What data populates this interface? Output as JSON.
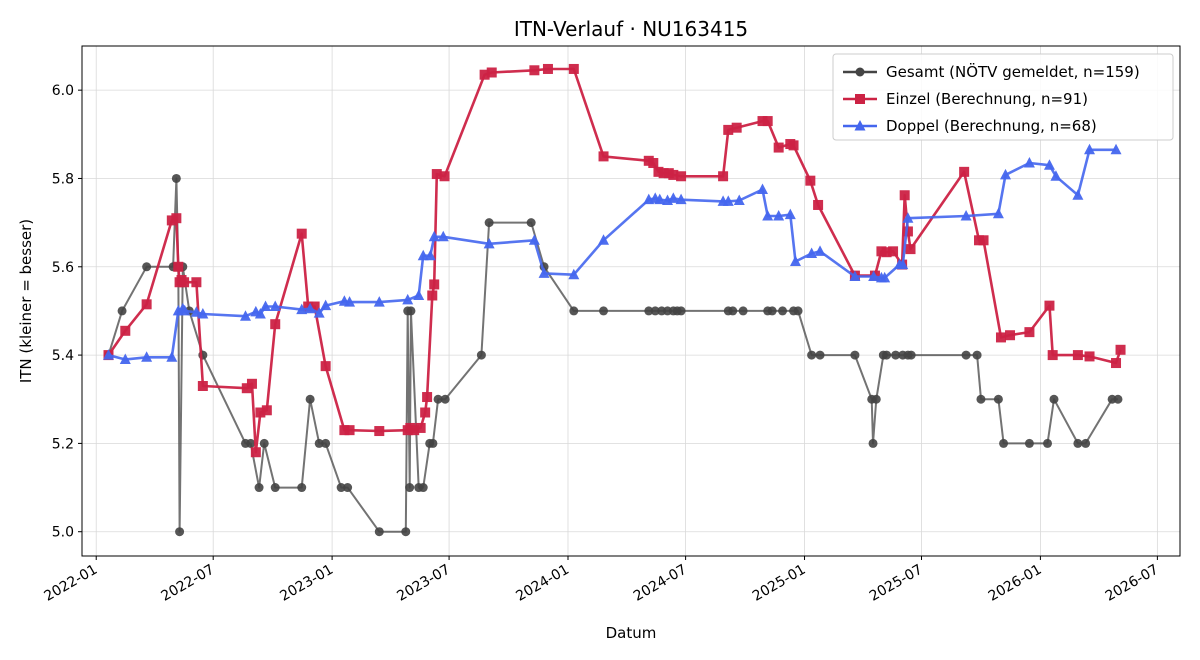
{
  "chart_data": {
    "type": "line",
    "title": "ITN-Verlauf · NU163415",
    "xlabel": "Datum",
    "ylabel": "ITN  (kleiner = besser)",
    "x_type": "date",
    "xlim": [
      "2021-12-10",
      "2026-08-05"
    ],
    "ylim": [
      4.945,
      6.1
    ],
    "x_ticks": [
      "2022-01",
      "2022-07",
      "2023-01",
      "2023-07",
      "2024-01",
      "2024-07",
      "2025-01",
      "2025-07",
      "2026-01",
      "2026-07"
    ],
    "y_ticks": [
      5.0,
      5.2,
      5.4,
      5.6,
      5.8,
      6.0
    ],
    "y_tick_labels": [
      "5.0",
      "5.2",
      "5.4",
      "5.6",
      "5.8",
      "6.0"
    ],
    "grid": true,
    "legend_position": "top-right",
    "series": [
      {
        "name": "Gesamt (NÖTV gemeldet, n=159)",
        "color": "#444444",
        "marker": "circle",
        "points": [
          [
            "2022-01-20",
            5.4
          ],
          [
            "2022-02-10",
            5.5
          ],
          [
            "2022-03-20",
            5.6
          ],
          [
            "2022-04-30",
            5.6
          ],
          [
            "2022-05-05",
            5.8
          ],
          [
            "2022-05-08",
            5.6
          ],
          [
            "2022-05-10",
            5.0
          ],
          [
            "2022-05-15",
            5.6
          ],
          [
            "2022-05-25",
            5.5
          ],
          [
            "2022-06-15",
            5.4
          ],
          [
            "2022-08-20",
            5.2
          ],
          [
            "2022-08-28",
            5.2
          ],
          [
            "2022-09-10",
            5.1
          ],
          [
            "2022-09-18",
            5.2
          ],
          [
            "2022-10-05",
            5.1
          ],
          [
            "2022-11-15",
            5.1
          ],
          [
            "2022-11-28",
            5.3
          ],
          [
            "2022-12-12",
            5.2
          ],
          [
            "2022-12-22",
            5.2
          ],
          [
            "2023-01-15",
            5.1
          ],
          [
            "2023-01-25",
            5.1
          ],
          [
            "2023-03-15",
            5.0
          ],
          [
            "2023-04-25",
            5.0
          ],
          [
            "2023-04-28",
            5.5
          ],
          [
            "2023-05-01",
            5.1
          ],
          [
            "2023-05-03",
            5.5
          ],
          [
            "2023-05-15",
            5.1
          ],
          [
            "2023-05-22",
            5.1
          ],
          [
            "2023-06-01",
            5.2
          ],
          [
            "2023-06-06",
            5.2
          ],
          [
            "2023-06-14",
            5.3
          ],
          [
            "2023-06-25",
            5.3
          ],
          [
            "2023-08-20",
            5.4
          ],
          [
            "2023-09-01",
            5.7
          ],
          [
            "2023-11-05",
            5.7
          ],
          [
            "2023-11-25",
            5.6
          ],
          [
            "2024-01-10",
            5.5
          ],
          [
            "2024-02-25",
            5.5
          ],
          [
            "2024-05-05",
            5.5
          ],
          [
            "2024-05-15",
            5.5
          ],
          [
            "2024-05-25",
            5.5
          ],
          [
            "2024-06-03",
            5.5
          ],
          [
            "2024-06-12",
            5.5
          ],
          [
            "2024-06-18",
            5.5
          ],
          [
            "2024-06-24",
            5.5
          ],
          [
            "2024-09-05",
            5.5
          ],
          [
            "2024-09-12",
            5.5
          ],
          [
            "2024-09-28",
            5.5
          ],
          [
            "2024-11-05",
            5.5
          ],
          [
            "2024-11-12",
            5.5
          ],
          [
            "2024-11-28",
            5.5
          ],
          [
            "2024-12-15",
            5.5
          ],
          [
            "2024-12-22",
            5.5
          ],
          [
            "2025-01-12",
            5.4
          ],
          [
            "2025-01-25",
            5.4
          ],
          [
            "2025-03-20",
            5.4
          ],
          [
            "2025-04-15",
            5.3
          ],
          [
            "2025-04-17",
            5.2
          ],
          [
            "2025-04-22",
            5.3
          ],
          [
            "2025-05-03",
            5.4
          ],
          [
            "2025-05-08",
            5.4
          ],
          [
            "2025-05-22",
            5.4
          ],
          [
            "2025-06-02",
            5.4
          ],
          [
            "2025-06-10",
            5.4
          ],
          [
            "2025-06-15",
            5.4
          ],
          [
            "2025-09-08",
            5.4
          ],
          [
            "2025-09-25",
            5.4
          ],
          [
            "2025-10-01",
            5.3
          ],
          [
            "2025-10-28",
            5.3
          ],
          [
            "2025-11-05",
            5.2
          ],
          [
            "2025-12-15",
            5.2
          ],
          [
            "2026-01-12",
            5.2
          ],
          [
            "2026-01-22",
            5.3
          ],
          [
            "2026-02-28",
            5.2
          ],
          [
            "2026-03-12",
            5.2
          ],
          [
            "2026-04-22",
            5.3
          ],
          [
            "2026-05-01",
            5.3
          ]
        ]
      },
      {
        "name": "Einzel (Berechnung, n=91)",
        "color": "#cc2244",
        "marker": "square",
        "points": [
          [
            "2022-01-20",
            5.4
          ],
          [
            "2022-02-15",
            5.455
          ],
          [
            "2022-03-20",
            5.515
          ],
          [
            "2022-04-28",
            5.705
          ],
          [
            "2022-05-05",
            5.71
          ],
          [
            "2022-05-08",
            5.6
          ],
          [
            "2022-05-10",
            5.565
          ],
          [
            "2022-05-13",
            5.57
          ],
          [
            "2022-05-17",
            5.565
          ],
          [
            "2022-06-05",
            5.565
          ],
          [
            "2022-06-15",
            5.33
          ],
          [
            "2022-08-22",
            5.325
          ],
          [
            "2022-08-30",
            5.335
          ],
          [
            "2022-09-05",
            5.18
          ],
          [
            "2022-09-12",
            5.27
          ],
          [
            "2022-09-22",
            5.275
          ],
          [
            "2022-10-05",
            5.47
          ],
          [
            "2022-11-15",
            5.675
          ],
          [
            "2022-11-25",
            5.51
          ],
          [
            "2022-12-05",
            5.51
          ],
          [
            "2022-12-22",
            5.375
          ],
          [
            "2023-01-20",
            5.23
          ],
          [
            "2023-01-28",
            5.23
          ],
          [
            "2023-03-15",
            5.228
          ],
          [
            "2023-04-28",
            5.23
          ],
          [
            "2023-05-02",
            5.235
          ],
          [
            "2023-05-08",
            5.23
          ],
          [
            "2023-05-18",
            5.235
          ],
          [
            "2023-05-25",
            5.27
          ],
          [
            "2023-05-28",
            5.305
          ],
          [
            "2023-06-05",
            5.535
          ],
          [
            "2023-06-08",
            5.56
          ],
          [
            "2023-06-12",
            5.81
          ],
          [
            "2023-06-24",
            5.805
          ],
          [
            "2023-08-25",
            6.035
          ],
          [
            "2023-09-05",
            6.04
          ],
          [
            "2023-11-10",
            6.045
          ],
          [
            "2023-12-01",
            6.048
          ],
          [
            "2024-01-10",
            6.048
          ],
          [
            "2024-02-25",
            5.85
          ],
          [
            "2024-05-05",
            5.84
          ],
          [
            "2024-05-12",
            5.835
          ],
          [
            "2024-05-20",
            5.815
          ],
          [
            "2024-05-28",
            5.812
          ],
          [
            "2024-06-05",
            5.812
          ],
          [
            "2024-06-12",
            5.808
          ],
          [
            "2024-06-24",
            5.805
          ],
          [
            "2024-08-28",
            5.805
          ],
          [
            "2024-09-05",
            5.91
          ],
          [
            "2024-09-18",
            5.915
          ],
          [
            "2024-10-28",
            5.93
          ],
          [
            "2024-11-05",
            5.93
          ],
          [
            "2024-11-22",
            5.87
          ],
          [
            "2024-12-10",
            5.878
          ],
          [
            "2024-12-15",
            5.875
          ],
          [
            "2025-01-10",
            5.795
          ],
          [
            "2025-01-22",
            5.74
          ],
          [
            "2025-03-20",
            5.58
          ],
          [
            "2025-04-20",
            5.58
          ],
          [
            "2025-04-30",
            5.635
          ],
          [
            "2025-05-08",
            5.633
          ],
          [
            "2025-05-18",
            5.635
          ],
          [
            "2025-06-01",
            5.605
          ],
          [
            "2025-06-05",
            5.762
          ],
          [
            "2025-06-10",
            5.68
          ],
          [
            "2025-06-14",
            5.64
          ],
          [
            "2025-09-05",
            5.815
          ],
          [
            "2025-09-28",
            5.66
          ],
          [
            "2025-10-05",
            5.66
          ],
          [
            "2025-11-01",
            5.44
          ],
          [
            "2025-11-15",
            5.445
          ],
          [
            "2025-12-15",
            5.452
          ],
          [
            "2026-01-15",
            5.512
          ],
          [
            "2026-01-20",
            5.4
          ],
          [
            "2026-02-28",
            5.4
          ],
          [
            "2026-03-18",
            5.397
          ],
          [
            "2026-04-28",
            5.382
          ],
          [
            "2026-05-05",
            5.412
          ]
        ]
      },
      {
        "name": "Doppel (Berechnung, n=68)",
        "color": "#4466ee",
        "marker": "triangle",
        "points": [
          [
            "2022-01-20",
            5.4
          ],
          [
            "2022-02-15",
            5.39
          ],
          [
            "2022-03-20",
            5.395
          ],
          [
            "2022-04-28",
            5.395
          ],
          [
            "2022-05-08",
            5.5
          ],
          [
            "2022-05-15",
            5.505
          ],
          [
            "2022-05-18",
            5.5
          ],
          [
            "2022-06-05",
            5.497
          ],
          [
            "2022-06-15",
            5.493
          ],
          [
            "2022-08-20",
            5.488
          ],
          [
            "2022-09-05",
            5.498
          ],
          [
            "2022-09-12",
            5.493
          ],
          [
            "2022-09-20",
            5.51
          ],
          [
            "2022-10-05",
            5.51
          ],
          [
            "2022-11-15",
            5.503
          ],
          [
            "2022-11-28",
            5.505
          ],
          [
            "2022-12-12",
            5.495
          ],
          [
            "2022-12-22",
            5.512
          ],
          [
            "2023-01-20",
            5.522
          ],
          [
            "2023-01-28",
            5.52
          ],
          [
            "2023-03-15",
            5.52
          ],
          [
            "2023-04-28",
            5.525
          ],
          [
            "2023-05-15",
            5.535
          ],
          [
            "2023-05-22",
            5.625
          ],
          [
            "2023-06-02",
            5.625
          ],
          [
            "2023-06-08",
            5.668
          ],
          [
            "2023-06-22",
            5.668
          ],
          [
            "2023-09-01",
            5.652
          ],
          [
            "2023-11-10",
            5.66
          ],
          [
            "2023-11-25",
            5.585
          ],
          [
            "2024-01-10",
            5.582
          ],
          [
            "2024-02-25",
            5.66
          ],
          [
            "2024-05-05",
            5.752
          ],
          [
            "2024-05-15",
            5.755
          ],
          [
            "2024-05-22",
            5.752
          ],
          [
            "2024-06-03",
            5.75
          ],
          [
            "2024-06-12",
            5.755
          ],
          [
            "2024-06-24",
            5.752
          ],
          [
            "2024-08-28",
            5.748
          ],
          [
            "2024-09-05",
            5.748
          ],
          [
            "2024-09-22",
            5.75
          ],
          [
            "2024-10-28",
            5.775
          ],
          [
            "2024-11-05",
            5.715
          ],
          [
            "2024-11-22",
            5.715
          ],
          [
            "2024-12-10",
            5.718
          ],
          [
            "2024-12-18",
            5.612
          ],
          [
            "2025-01-12",
            5.63
          ],
          [
            "2025-01-25",
            5.635
          ],
          [
            "2025-03-20",
            5.578
          ],
          [
            "2025-04-18",
            5.578
          ],
          [
            "2025-04-30",
            5.575
          ],
          [
            "2025-05-05",
            5.575
          ],
          [
            "2025-05-28",
            5.605
          ],
          [
            "2025-06-02",
            5.605
          ],
          [
            "2025-06-10",
            5.71
          ],
          [
            "2025-09-08",
            5.715
          ],
          [
            "2025-10-28",
            5.72
          ],
          [
            "2025-11-08",
            5.808
          ],
          [
            "2025-12-15",
            5.835
          ],
          [
            "2026-01-15",
            5.83
          ],
          [
            "2026-01-25",
            5.805
          ],
          [
            "2026-02-28",
            5.762
          ],
          [
            "2026-03-18",
            5.865
          ],
          [
            "2026-04-28",
            5.865
          ]
        ]
      }
    ]
  }
}
